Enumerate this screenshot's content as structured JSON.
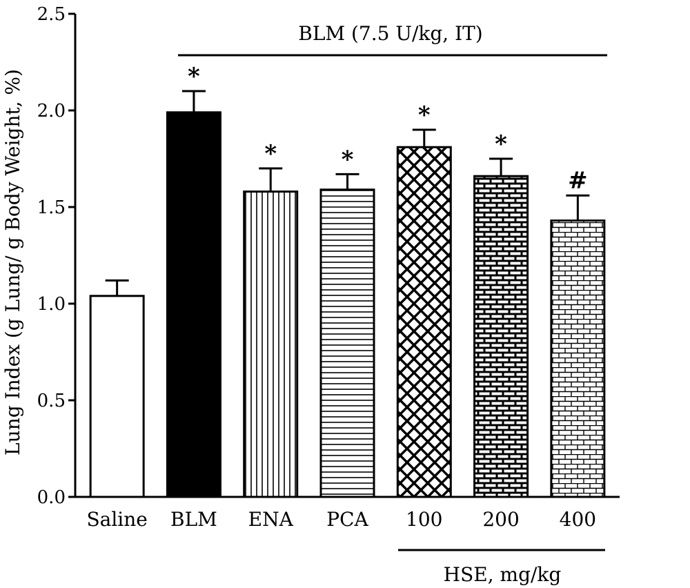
{
  "chart_data": {
    "type": "bar",
    "ylabel": "Lung Index (g Lung/ g Body Weight, %)",
    "xlabel": "",
    "ylim": [
      0,
      2.5
    ],
    "yticks": [
      "0.0",
      "0.5",
      "1.0",
      "1.5",
      "2.0",
      "2.5"
    ],
    "grid": false,
    "categories": [
      "Saline",
      "BLM",
      "ENA",
      "PCA",
      "100",
      "200",
      "400"
    ],
    "values": [
      1.04,
      1.99,
      1.58,
      1.59,
      1.81,
      1.66,
      1.43
    ],
    "errors": [
      0.08,
      0.11,
      0.12,
      0.08,
      0.09,
      0.09,
      0.13
    ],
    "significance": [
      "",
      "*",
      "*",
      "*",
      "*",
      "*",
      "#"
    ],
    "patterns": [
      "white",
      "black",
      "vertical-lines",
      "horizontal-lines",
      "crosshatch",
      "dark-brick",
      "light-brick"
    ],
    "annotations": {
      "blm_group": "BLM (7.5 U/kg, IT)",
      "hse_group": "HSE, mg/kg"
    }
  }
}
